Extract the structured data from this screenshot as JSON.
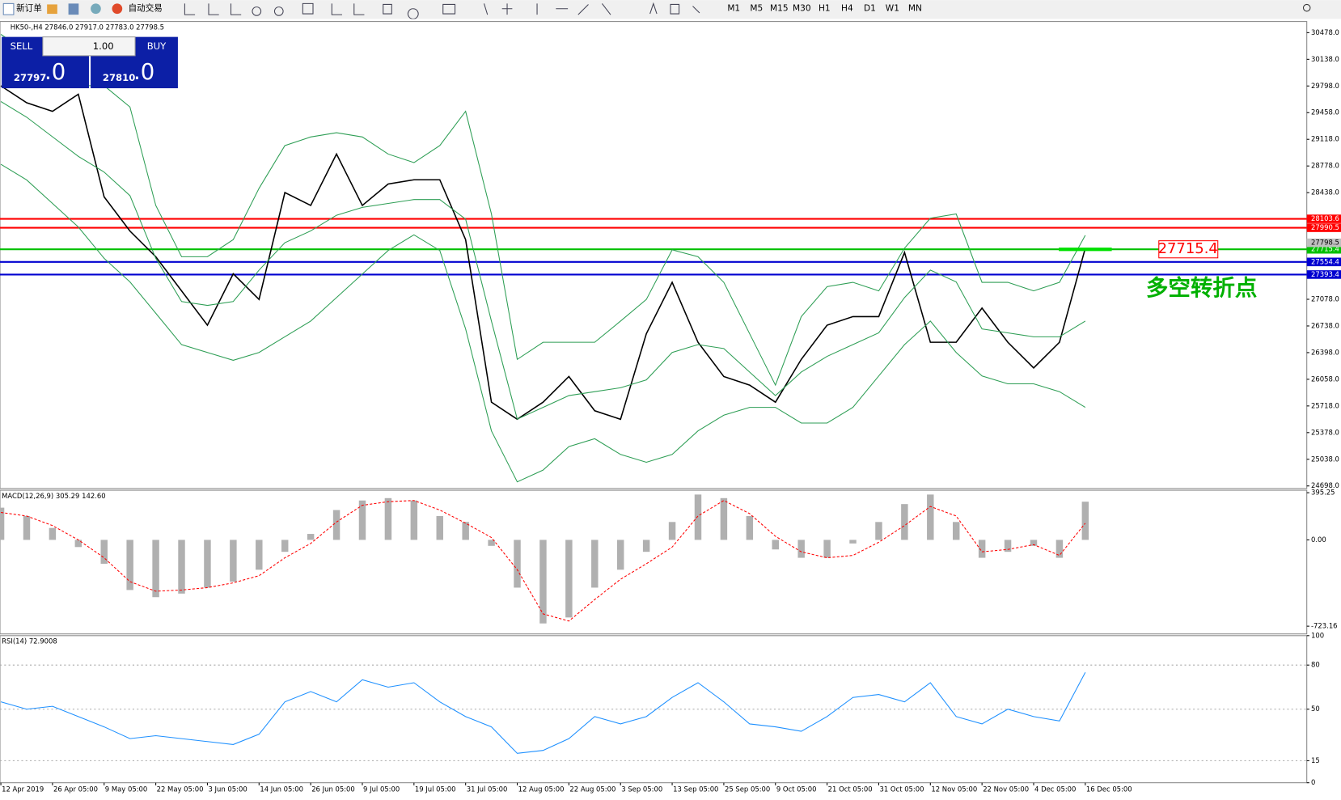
{
  "toolbar": {
    "new_order": "新订单",
    "auto_trading": "自动交易",
    "timeframes": [
      "M1",
      "M5",
      "M15",
      "M30",
      "H1",
      "H4",
      "D1",
      "W1",
      "MN"
    ]
  },
  "trade_panel": {
    "sell": "SELL",
    "lot": "1.00",
    "buy": "BUY",
    "sell_price": "27797",
    "sell_frac": ".0",
    "buy_price": "27810",
    "buy_frac": ".0"
  },
  "chart_data": [
    {
      "type": "line",
      "title": "HK50-,H4  27846.0 27917.0 27783.0 27798.5",
      "categories": [
        "12 Apr 2019",
        null,
        "26 Apr 05:00",
        null,
        "9 May 05:00",
        null,
        "22 May 05:00",
        null,
        "3 Jun 05:00",
        null,
        "14 Jun 05:00",
        null,
        "26 Jun 05:00",
        null,
        "9 Jul 05:00",
        null,
        "19 Jul 05:00",
        null,
        "31 Jul 05:00",
        null,
        "12 Aug 05:00",
        null,
        "22 Aug 05:00",
        null,
        "3 Sep 05:00",
        null,
        "13 Sep 05:00",
        null,
        "25 Sep 05:00",
        null,
        "9 Oct 05:00",
        null,
        "21 Oct 05:00",
        null,
        "31 Oct 05:00",
        null,
        "12 Nov 05:00",
        null,
        "22 Nov 05:00",
        null,
        "4 Dec 05:00",
        null,
        "16 Dec 05:00"
      ],
      "series": [
        {
          "name": "Close",
          "color": "#000000",
          "values": [
            29800,
            29584,
            29475,
            29693,
            28384,
            27948,
            27621,
            27185,
            26748,
            27403,
            27076,
            28439,
            28275,
            28930,
            28275,
            28548,
            28602,
            28602,
            27839,
            25766,
            25548,
            25766,
            26093,
            25657,
            25548,
            26639,
            27294,
            26530,
            26093,
            25984,
            25766,
            26312,
            26748,
            26857,
            26857,
            27675,
            26530,
            26530,
            26966,
            26530,
            26203,
            26530,
            27730
          ]
        },
        {
          "name": "Upper",
          "color": "#2e9e55",
          "values": [
            30456,
            30238,
            30020,
            29802,
            29802,
            29530,
            28275,
            27621,
            27621,
            27839,
            28493,
            29038,
            29148,
            29202,
            29148,
            28930,
            28821,
            29038,
            29475,
            28166,
            26312,
            26530,
            26530,
            26530,
            26800,
            27076,
            27708,
            27621,
            27294,
            26639,
            25984,
            26857,
            27239,
            27294,
            27185,
            27730,
            28112,
            28166,
            27294,
            27294,
            27185,
            27294,
            27894
          ]
        },
        {
          "name": "Middle",
          "color": "#2e9e55",
          "values": [
            29600,
            29400,
            29150,
            28900,
            28700,
            28400,
            27600,
            27050,
            27000,
            27050,
            27450,
            27800,
            27950,
            28150,
            28250,
            28300,
            28350,
            28350,
            28100,
            26800,
            25550,
            25700,
            25850,
            25900,
            25950,
            26050,
            26400,
            26500,
            26450,
            26150,
            25850,
            26150,
            26350,
            26500,
            26650,
            27100,
            27450,
            27300,
            26700,
            26650,
            26600,
            26600,
            26800
          ]
        },
        {
          "name": "Lower",
          "color": "#2e9e55",
          "values": [
            28800,
            28600,
            28300,
            28000,
            27600,
            27300,
            26900,
            26500,
            26400,
            26300,
            26400,
            26600,
            26800,
            27100,
            27400,
            27700,
            27900,
            27700,
            26700,
            25400,
            24750,
            24900,
            25200,
            25300,
            25100,
            25000,
            25100,
            25400,
            25600,
            25700,
            25700,
            25500,
            25500,
            25700,
            26100,
            26500,
            26800,
            26400,
            26100,
            26000,
            26000,
            25900,
            25700
          ]
        }
      ],
      "ylim": [
        24665,
        30620
      ],
      "yticks": [
        {
          "value": 30478,
          "label": "30478.0"
        },
        {
          "value": 30138,
          "label": "30138.0"
        },
        {
          "value": 29798,
          "label": "29798.0"
        },
        {
          "value": 29458,
          "label": "29458.0"
        },
        {
          "value": 29118,
          "label": "29118.0"
        },
        {
          "value": 28778,
          "label": "28778.0"
        },
        {
          "value": 28438,
          "label": "28438.0"
        },
        {
          "value": 27078,
          "label": "27078.0"
        },
        {
          "value": 26738,
          "label": "26738.0"
        },
        {
          "value": 26398,
          "label": "26398.0"
        },
        {
          "value": 26058,
          "label": "26058.0"
        },
        {
          "value": 25718,
          "label": "25718.0"
        },
        {
          "value": 25378,
          "label": "25378.0"
        },
        {
          "value": 25038,
          "label": "25038.0"
        },
        {
          "value": 24698,
          "label": "24698.0"
        }
      ],
      "levels": [
        {
          "value": 28103.6,
          "color": "#ff0000"
        },
        {
          "value": 27990.5,
          "color": "#ff0000"
        },
        {
          "value": 27715.4,
          "color": "#00c000"
        },
        {
          "value": 27554.4,
          "color": "#0000d0"
        },
        {
          "value": 27393.4,
          "color": "#0000d0"
        }
      ],
      "last_price": 27798.5,
      "marker_price": 27715.4,
      "annotation": "多空转折点"
    },
    {
      "type": "bar",
      "title": "MACD(12,26,9) 305.29 142.60",
      "series": [
        {
          "name": "MACD",
          "type": "bar",
          "color": "#b0b0b0",
          "values": [
            270,
            200,
            100,
            -60,
            -200,
            -420,
            -480,
            -450,
            -400,
            -350,
            -250,
            -100,
            50,
            250,
            330,
            350,
            330,
            200,
            150,
            -50,
            -400,
            -700,
            -650,
            -400,
            -250,
            -100,
            150,
            380,
            350,
            200,
            -80,
            -150,
            -150,
            -30,
            150,
            300,
            380,
            150,
            -150,
            -100,
            -50,
            -150,
            320
          ]
        },
        {
          "name": "Signal",
          "type": "line",
          "color": "#ff0000",
          "values": [
            230,
            200,
            120,
            0,
            -150,
            -350,
            -430,
            -420,
            -400,
            -360,
            -300,
            -150,
            -30,
            150,
            290,
            320,
            330,
            250,
            140,
            20,
            -250,
            -620,
            -680,
            -500,
            -330,
            -200,
            -60,
            200,
            330,
            220,
            30,
            -100,
            -150,
            -130,
            -20,
            120,
            280,
            200,
            -100,
            -80,
            -40,
            -130,
            140
          ]
        }
      ],
      "ylim": [
        -788,
        416
      ],
      "yticks": [
        {
          "value": 395.25,
          "label": "395.25"
        },
        {
          "value": 0,
          "label": "0.00"
        },
        {
          "value": -723.16,
          "label": "-723.16"
        }
      ]
    },
    {
      "type": "line",
      "title": "RSI(14) 72.9008",
      "series": [
        {
          "name": "RSI",
          "color": "#1e90ff",
          "values": [
            55,
            50,
            52,
            45,
            38,
            30,
            32,
            30,
            28,
            26,
            33,
            55,
            62,
            55,
            70,
            65,
            68,
            55,
            45,
            38,
            20,
            22,
            30,
            45,
            40,
            45,
            58,
            68,
            55,
            40,
            38,
            35,
            45,
            58,
            60,
            55,
            68,
            45,
            40,
            50,
            45,
            42,
            75
          ]
        }
      ],
      "ylim": [
        0,
        100
      ],
      "yticks": [
        100,
        80,
        50,
        15,
        0
      ],
      "levels": [
        80,
        50,
        15
      ]
    }
  ]
}
